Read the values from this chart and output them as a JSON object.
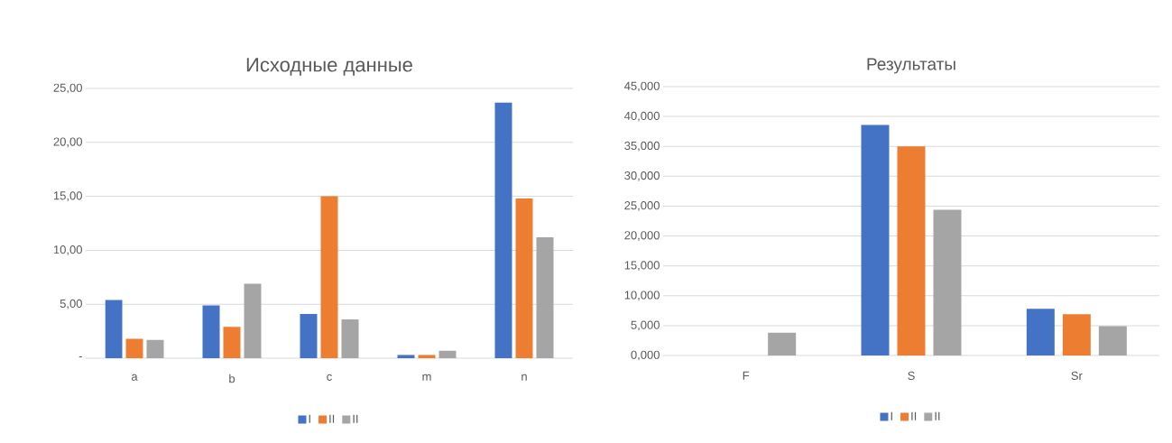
{
  "chart_data": [
    {
      "type": "bar",
      "title": "Исходные данные",
      "categories": [
        "a",
        "b",
        "c",
        "m",
        "n"
      ],
      "series": [
        {
          "name": "I",
          "color": "#4472c4",
          "values": [
            5.4,
            4.9,
            4.1,
            0.3,
            23.7
          ]
        },
        {
          "name": "II",
          "color": "#ed7d31",
          "values": [
            1.8,
            2.9,
            15.0,
            0.3,
            14.8
          ]
        },
        {
          "name": "II",
          "color": "#a5a5a5",
          "values": [
            1.7,
            6.9,
            3.6,
            0.7,
            11.2
          ]
        }
      ],
      "ylim": [
        0,
        25
      ],
      "yticks": [
        {
          "value": 0,
          "label": "-"
        },
        {
          "value": 5,
          "label": "5,00"
        },
        {
          "value": 10,
          "label": "10,00"
        },
        {
          "value": 15,
          "label": "15,00"
        },
        {
          "value": 20,
          "label": "20,00"
        },
        {
          "value": 25,
          "label": "25,00"
        }
      ],
      "grid": "y",
      "legend": "bottom"
    },
    {
      "type": "bar",
      "title": "Результаты",
      "categories": [
        "F",
        "S",
        "Sr"
      ],
      "series": [
        {
          "name": "I",
          "color": "#4472c4",
          "values": [
            0,
            38.6,
            7.8
          ]
        },
        {
          "name": "II",
          "color": "#ed7d31",
          "values": [
            0,
            35.0,
            6.9
          ]
        },
        {
          "name": "II",
          "color": "#a5a5a5",
          "values": [
            3.8,
            24.4,
            4.9
          ]
        }
      ],
      "ylim": [
        0,
        45
      ],
      "yticks": [
        {
          "value": 0,
          "label": "0,000"
        },
        {
          "value": 5,
          "label": "5,000"
        },
        {
          "value": 10,
          "label": "10,000"
        },
        {
          "value": 15,
          "label": "15,000"
        },
        {
          "value": 20,
          "label": "20,000"
        },
        {
          "value": 25,
          "label": "25,000"
        },
        {
          "value": 30,
          "label": "30,000"
        },
        {
          "value": 35,
          "label": "35,000"
        },
        {
          "value": 40,
          "label": "40,000"
        },
        {
          "value": 45,
          "label": "45,000"
        }
      ],
      "grid": "y",
      "legend": "bottom"
    }
  ]
}
